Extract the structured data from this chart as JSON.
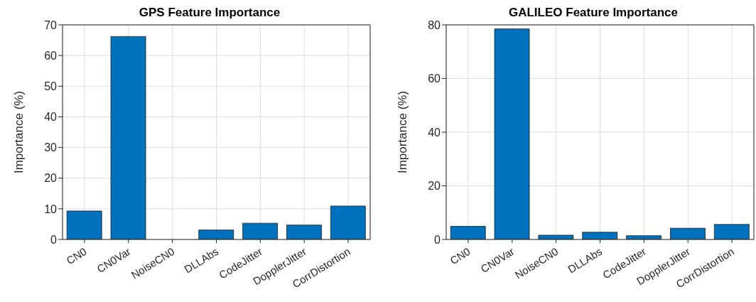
{
  "chart_data": [
    {
      "type": "bar",
      "title": "GPS Feature Importance",
      "ylabel": "Importance (%)",
      "categories": [
        "CN0",
        "CN0Var",
        "NoiseCN0",
        "DLLAbs",
        "CodeJitter",
        "DopplerJitter",
        "CorrDistortion"
      ],
      "values": [
        9.3,
        66.2,
        0,
        3.1,
        5.3,
        4.7,
        10.9
      ],
      "color": "#0072bd",
      "ylim": [
        0,
        70
      ],
      "yticks": [
        0,
        10,
        20,
        30,
        40,
        50,
        60,
        70
      ],
      "grid": true
    },
    {
      "type": "bar",
      "title": "GALILEO Feature Importance",
      "ylabel": "Importance (%)",
      "categories": [
        "CN0",
        "CN0Var",
        "NoiseCN0",
        "DLLAbs",
        "CodeJitter",
        "DopplerJitter",
        "CorrDistortion"
      ],
      "values": [
        4.9,
        78.5,
        1.6,
        2.7,
        1.4,
        4.2,
        5.6
      ],
      "color": "#0072bd",
      "ylim": [
        0,
        80
      ],
      "yticks": [
        0,
        20,
        40,
        60,
        80
      ],
      "grid": true
    }
  ]
}
